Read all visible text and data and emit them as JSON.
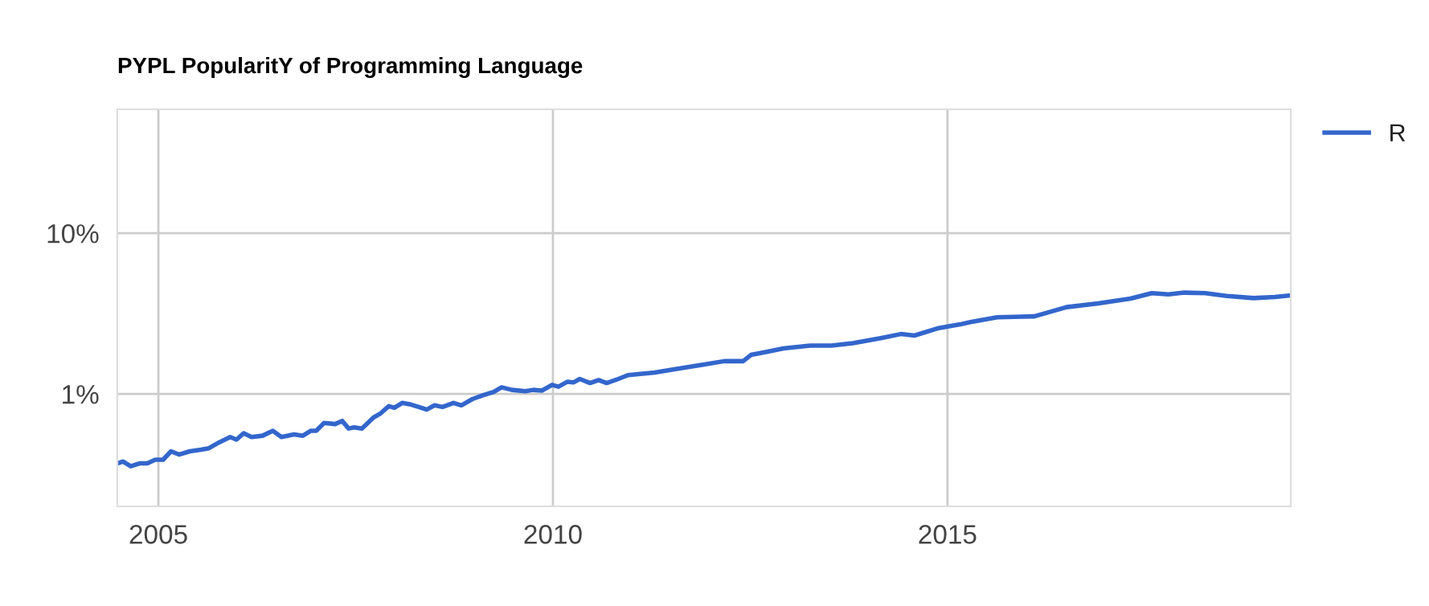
{
  "chart_data": {
    "type": "line",
    "title": "PYPL PopularitY of Programming Language",
    "x": [
      2004.48,
      2004.55,
      2004.65,
      2004.76,
      2004.86,
      2004.96,
      2005.06,
      2005.16,
      2005.26,
      2005.4,
      2005.54,
      2005.64,
      2005.77,
      2005.91,
      2005.99,
      2006.08,
      2006.18,
      2006.32,
      2006.45,
      2006.56,
      2006.72,
      2006.83,
      2006.93,
      2007.0,
      2007.1,
      2007.24,
      2007.33,
      2007.41,
      2007.48,
      2007.58,
      2007.72,
      2007.82,
      2007.92,
      2007.99,
      2008.09,
      2008.2,
      2008.3,
      2008.4,
      2008.5,
      2008.6,
      2008.74,
      2008.84,
      2008.98,
      2009.11,
      2009.25,
      2009.35,
      2009.48,
      2009.65,
      2009.75,
      2009.86,
      2009.99,
      2010.07,
      2010.18,
      2010.26,
      2010.34,
      2010.47,
      2010.58,
      2010.68,
      2010.81,
      2010.95,
      2011.29,
      2011.49,
      2011.9,
      2012.17,
      2012.41,
      2012.51,
      2012.71,
      2012.92,
      2013.26,
      2013.53,
      2013.8,
      2014.14,
      2014.41,
      2014.58,
      2014.89,
      2015.16,
      2015.29,
      2015.63,
      2016.1,
      2016.51,
      2016.91,
      2017.32,
      2017.59,
      2017.8,
      2018.0,
      2018.27,
      2018.54,
      2018.88,
      2019.15,
      2019.34
    ],
    "series": [
      {
        "name": "R",
        "color": "#3366cc",
        "values": [
          0.37,
          0.38,
          0.355,
          0.37,
          0.37,
          0.39,
          0.39,
          0.44,
          0.42,
          0.44,
          0.45,
          0.46,
          0.5,
          0.54,
          0.52,
          0.57,
          0.54,
          0.55,
          0.59,
          0.54,
          0.56,
          0.55,
          0.59,
          0.59,
          0.66,
          0.65,
          0.68,
          0.61,
          0.62,
          0.61,
          0.71,
          0.76,
          0.84,
          0.82,
          0.88,
          0.86,
          0.83,
          0.8,
          0.85,
          0.83,
          0.88,
          0.85,
          0.93,
          0.98,
          1.03,
          1.1,
          1.06,
          1.04,
          1.06,
          1.05,
          1.14,
          1.11,
          1.19,
          1.18,
          1.24,
          1.17,
          1.22,
          1.17,
          1.23,
          1.31,
          1.36,
          1.41,
          1.52,
          1.6,
          1.6,
          1.75,
          1.83,
          1.92,
          2.0,
          2.0,
          2.07,
          2.22,
          2.36,
          2.31,
          2.57,
          2.71,
          2.8,
          3.0,
          3.04,
          3.47,
          3.66,
          3.92,
          4.24,
          4.17,
          4.27,
          4.24,
          4.07,
          3.95,
          4.01,
          4.1
        ]
      }
    ],
    "log": "y",
    "xlim": [
      2004.48,
      2019.35
    ],
    "ylim": [
      0.2,
      59
    ],
    "xticks": [
      2005,
      2010,
      2015
    ],
    "yticks": [
      {
        "value": 1,
        "label": "1%"
      },
      {
        "value": 10,
        "label": "10%"
      }
    ],
    "grid": true,
    "legend": "top right"
  }
}
